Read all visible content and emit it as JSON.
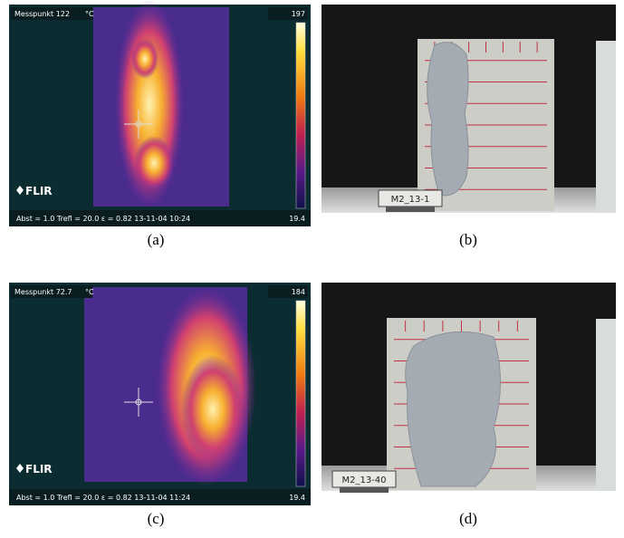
{
  "panels": [
    {
      "label": "(a)",
      "thermal": {
        "measure_label": "Messpunkt 122",
        "unit": "°C",
        "scale_max": 197,
        "scale_min": 19.4,
        "brand": "FLIR",
        "footer": "Abst = 1.0  Trefl = 20.0  ε = 0.82  13-11-04 10:24"
      }
    },
    {
      "label": "(b)",
      "photo": {
        "sign": "M2_13-1"
      }
    },
    {
      "label": "(c)",
      "thermal": {
        "measure_label": "Messpunkt 72.7",
        "unit": "°C",
        "scale_max": 184,
        "scale_min": 19.4,
        "brand": "FLIR",
        "footer": "Abst = 1.0  Trefl = 20.0  ε = 0.82  13-11-04 11:24"
      }
    },
    {
      "label": "(d)",
      "photo": {
        "sign": "M2_13-40"
      }
    }
  ]
}
